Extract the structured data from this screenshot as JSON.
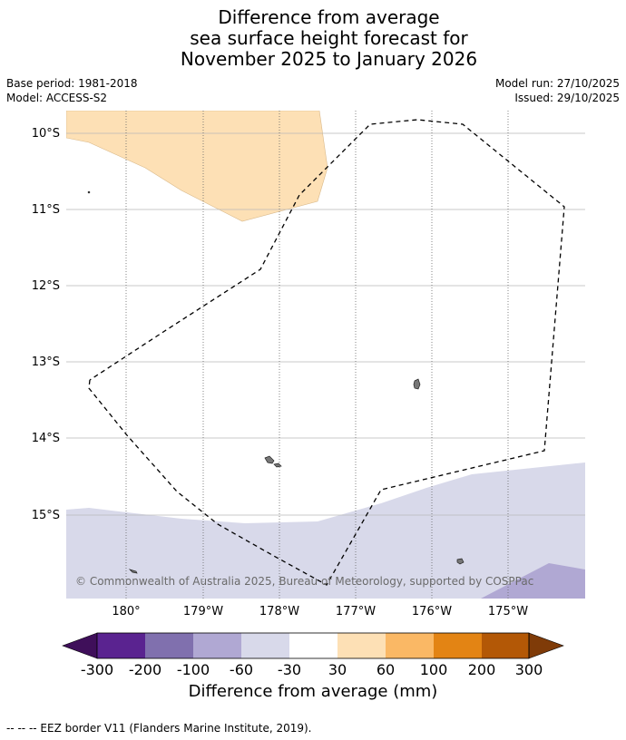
{
  "title": {
    "line1": "Difference from average",
    "line2": "sea surface height forecast for",
    "line3": "November 2025 to January 2026"
  },
  "meta": {
    "base_period": "Base period: 1981-2018",
    "model": "Model: ACCESS-S2",
    "model_run": "Model run: 27/10/2025",
    "issued": "Issued: 29/10/2025"
  },
  "map": {
    "lat_labels": [
      "10°S",
      "11°S",
      "12°S",
      "13°S",
      "14°S",
      "15°S"
    ],
    "lon_labels": [
      "180°",
      "179°W",
      "178°W",
      "177°W",
      "176°W",
      "175°W"
    ],
    "copyright": "© Commonwealth of Australia 2025, Bureau of Meteorology, supported by COSPPac"
  },
  "colorbar": {
    "labels": [
      "-300",
      "-200",
      "-100",
      "-60",
      "-30",
      "30",
      "60",
      "100",
      "200",
      "300"
    ],
    "colors": [
      "#3f0f5a",
      "#5a2390",
      "#8070ae",
      "#b0a8d3",
      "#d8d9ea",
      "#ffffff",
      "#fde0b5",
      "#fab865",
      "#e38414",
      "#b35806",
      "#7f3b08"
    ],
    "title": "Difference from average (mm)"
  },
  "footnote": "--  --  -- EEZ border V11 (Flanders Marine Institute, 2019)."
}
